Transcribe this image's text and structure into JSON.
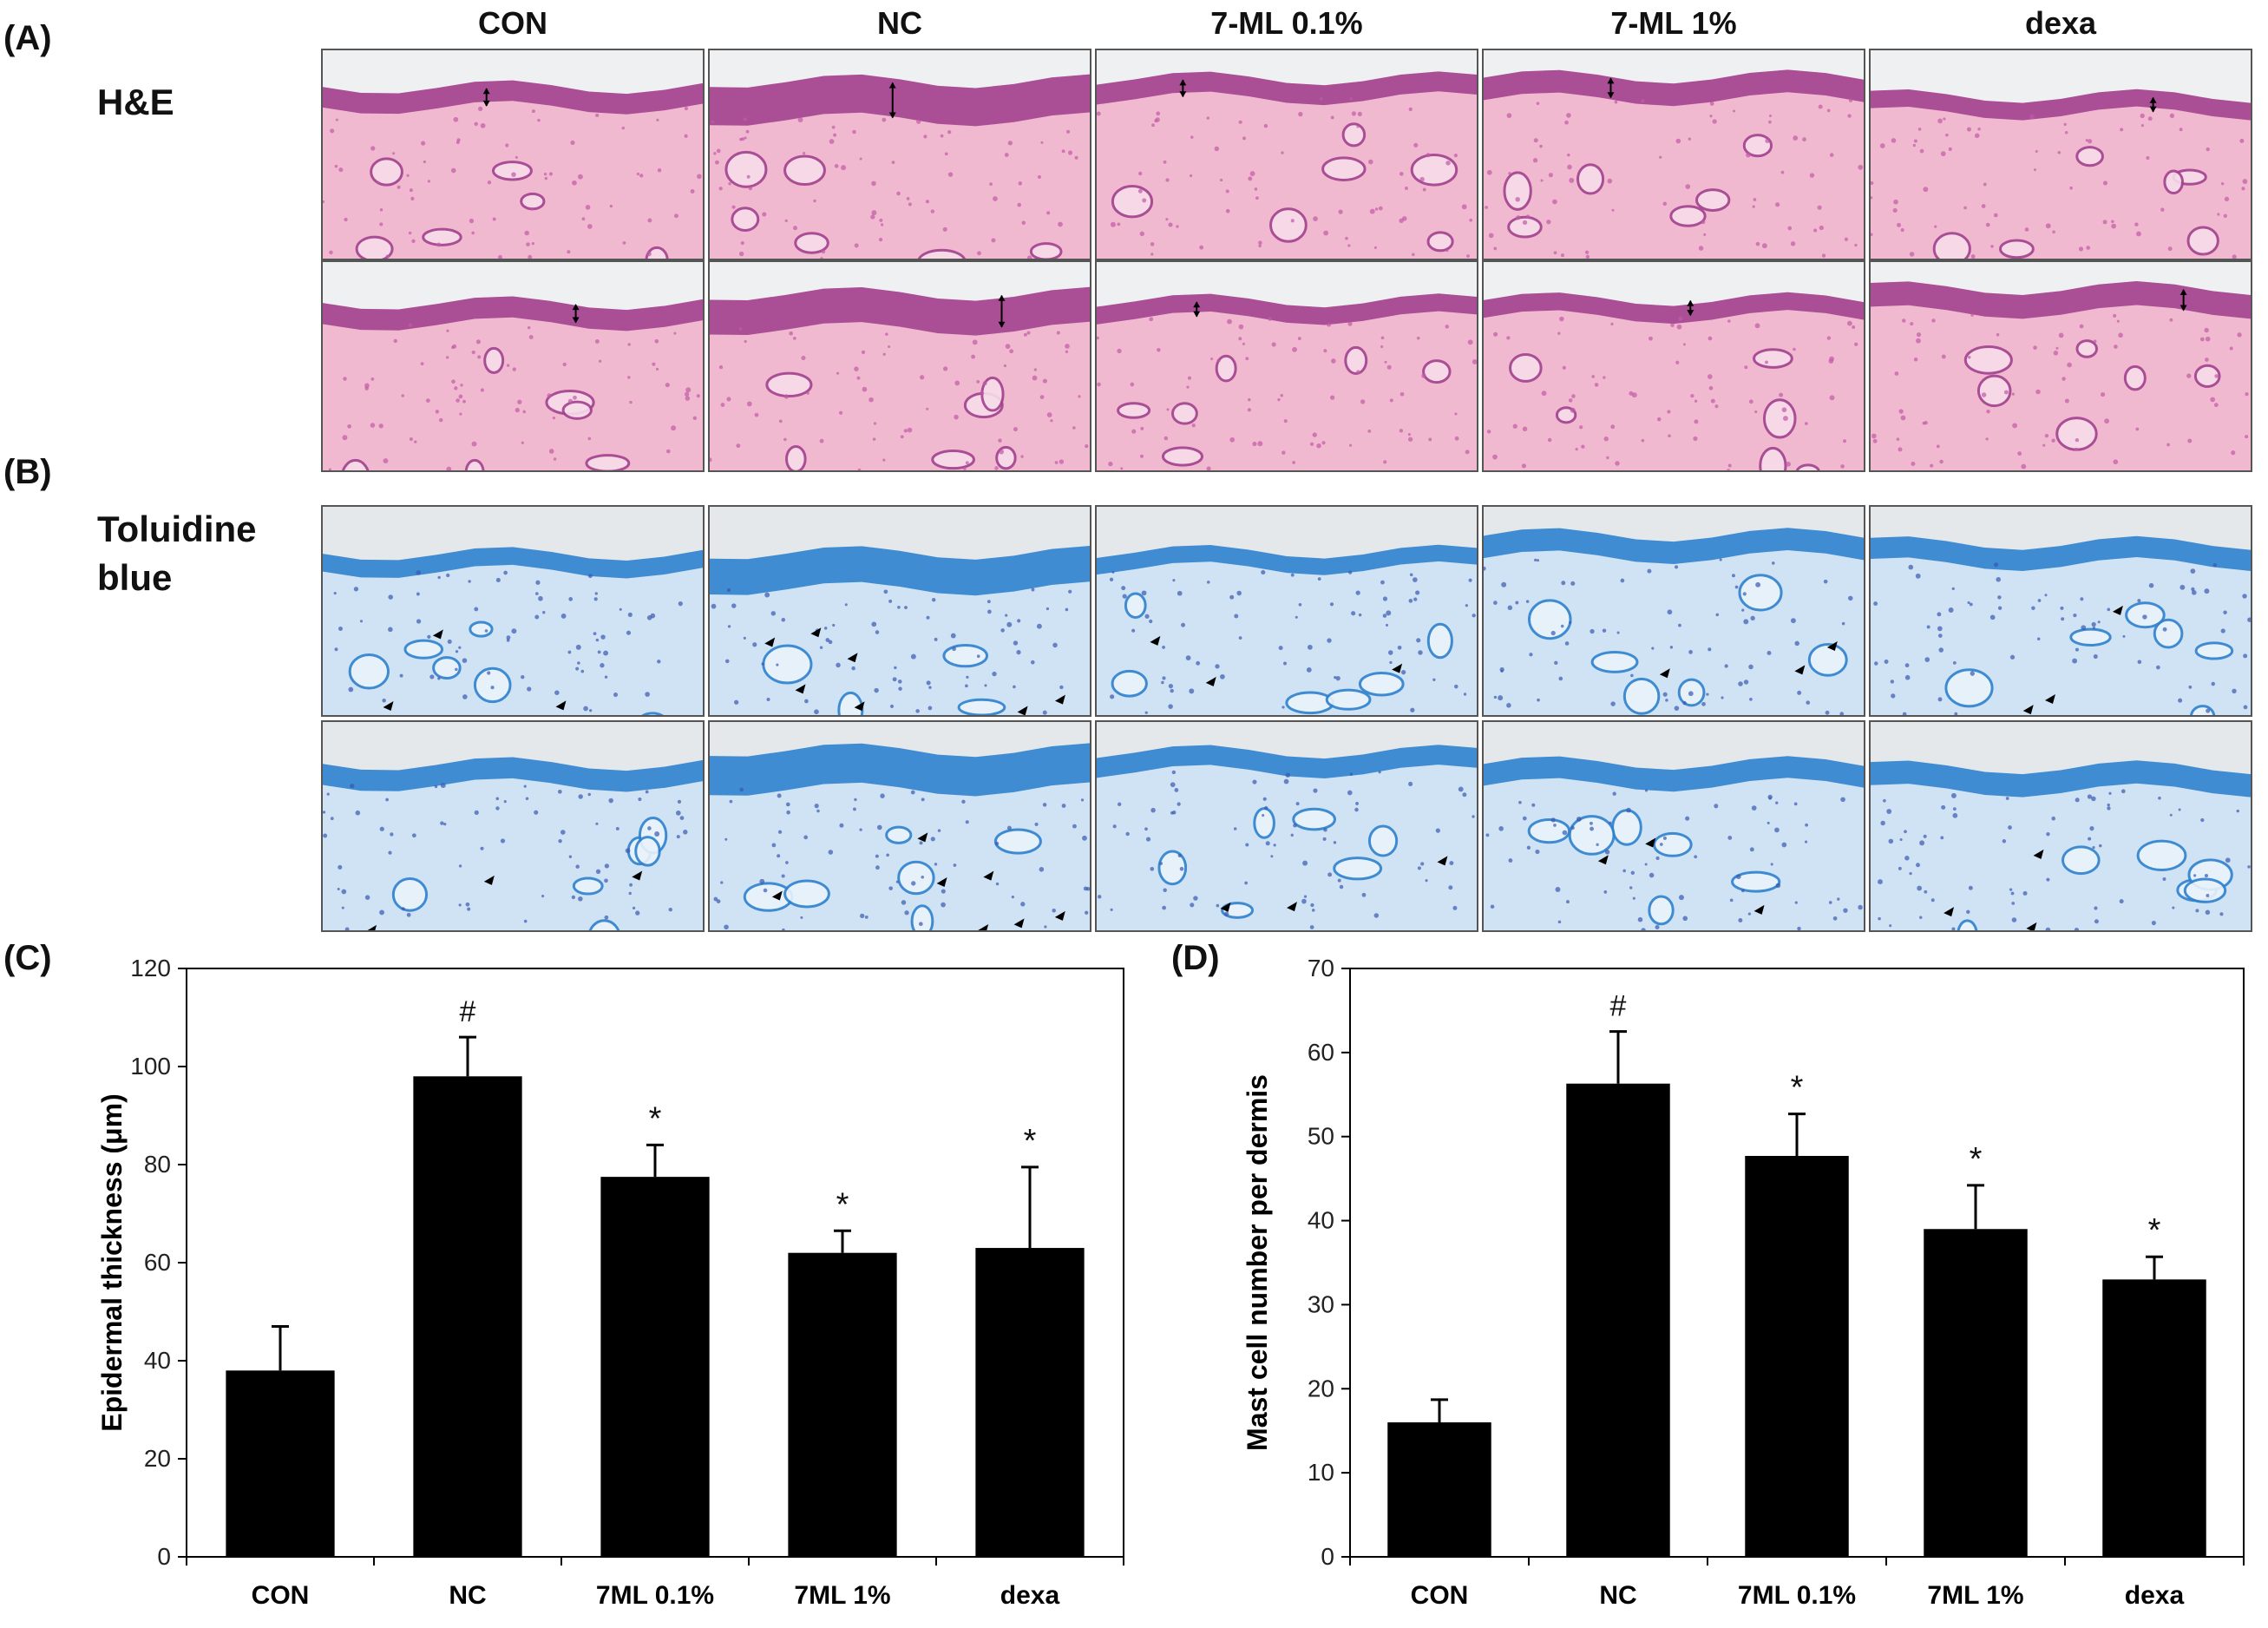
{
  "panels": {
    "a": "(A)",
    "b": "(B)",
    "c": "(C)",
    "d": "(D)"
  },
  "histology": {
    "columns": [
      "CON",
      "NC",
      "7-ML 0.1%",
      "7-ML 1%",
      "dexa"
    ],
    "stains": [
      {
        "label": "H&E",
        "palette": {
          "bg": "#f1b9d0",
          "epi": "#a2428f",
          "cells": "#c15aa6",
          "glands": "#f7dcea"
        }
      },
      {
        "label": "Toluidine blue",
        "palette": {
          "bg": "#cfe3f4",
          "epi": "#2f82cf",
          "cells": "#3b57b0",
          "glands": "#eaf3fb"
        }
      }
    ]
  },
  "chart_data": [
    {
      "type": "bar",
      "categories": [
        "CON",
        "NC",
        "7ML 0.1%",
        "7ML 1%",
        "dexa"
      ],
      "values": [
        38,
        98,
        77.5,
        62,
        63
      ],
      "errors": [
        9,
        8,
        6.5,
        4.5,
        16.5
      ],
      "annotations": [
        "",
        "#",
        "*",
        "*",
        "*"
      ],
      "title": "",
      "xlabel": "",
      "ylabel": "Epidermal thickness (μm)",
      "ylim": [
        0,
        120
      ],
      "yticks": [
        0,
        20,
        40,
        60,
        80,
        100,
        120
      ],
      "bar_color": "#000000"
    },
    {
      "type": "bar",
      "categories": [
        "CON",
        "NC",
        "7ML 0.1%",
        "7ML 1%",
        "dexa"
      ],
      "values": [
        16,
        56.3,
        47.7,
        39,
        33
      ],
      "errors": [
        2.7,
        6.2,
        5,
        5.2,
        2.7
      ],
      "annotations": [
        "",
        "#",
        "*",
        "*",
        "*"
      ],
      "title": "",
      "xlabel": "",
      "ylabel": "Mast cell number per dermis",
      "ylim": [
        0,
        70
      ],
      "yticks": [
        0,
        10,
        20,
        30,
        40,
        50,
        60,
        70
      ],
      "bar_color": "#000000"
    }
  ]
}
